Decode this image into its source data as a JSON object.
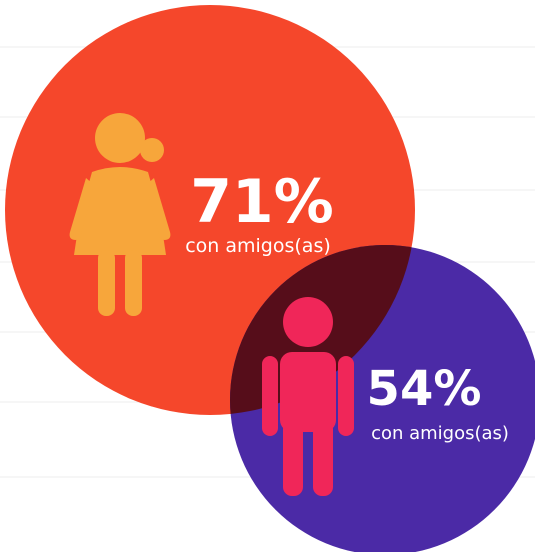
{
  "items": [
    {
      "value": "71%",
      "caption": "con amigos(as)"
    },
    {
      "value": "54%",
      "caption": "con amigos(as)"
    }
  ]
}
